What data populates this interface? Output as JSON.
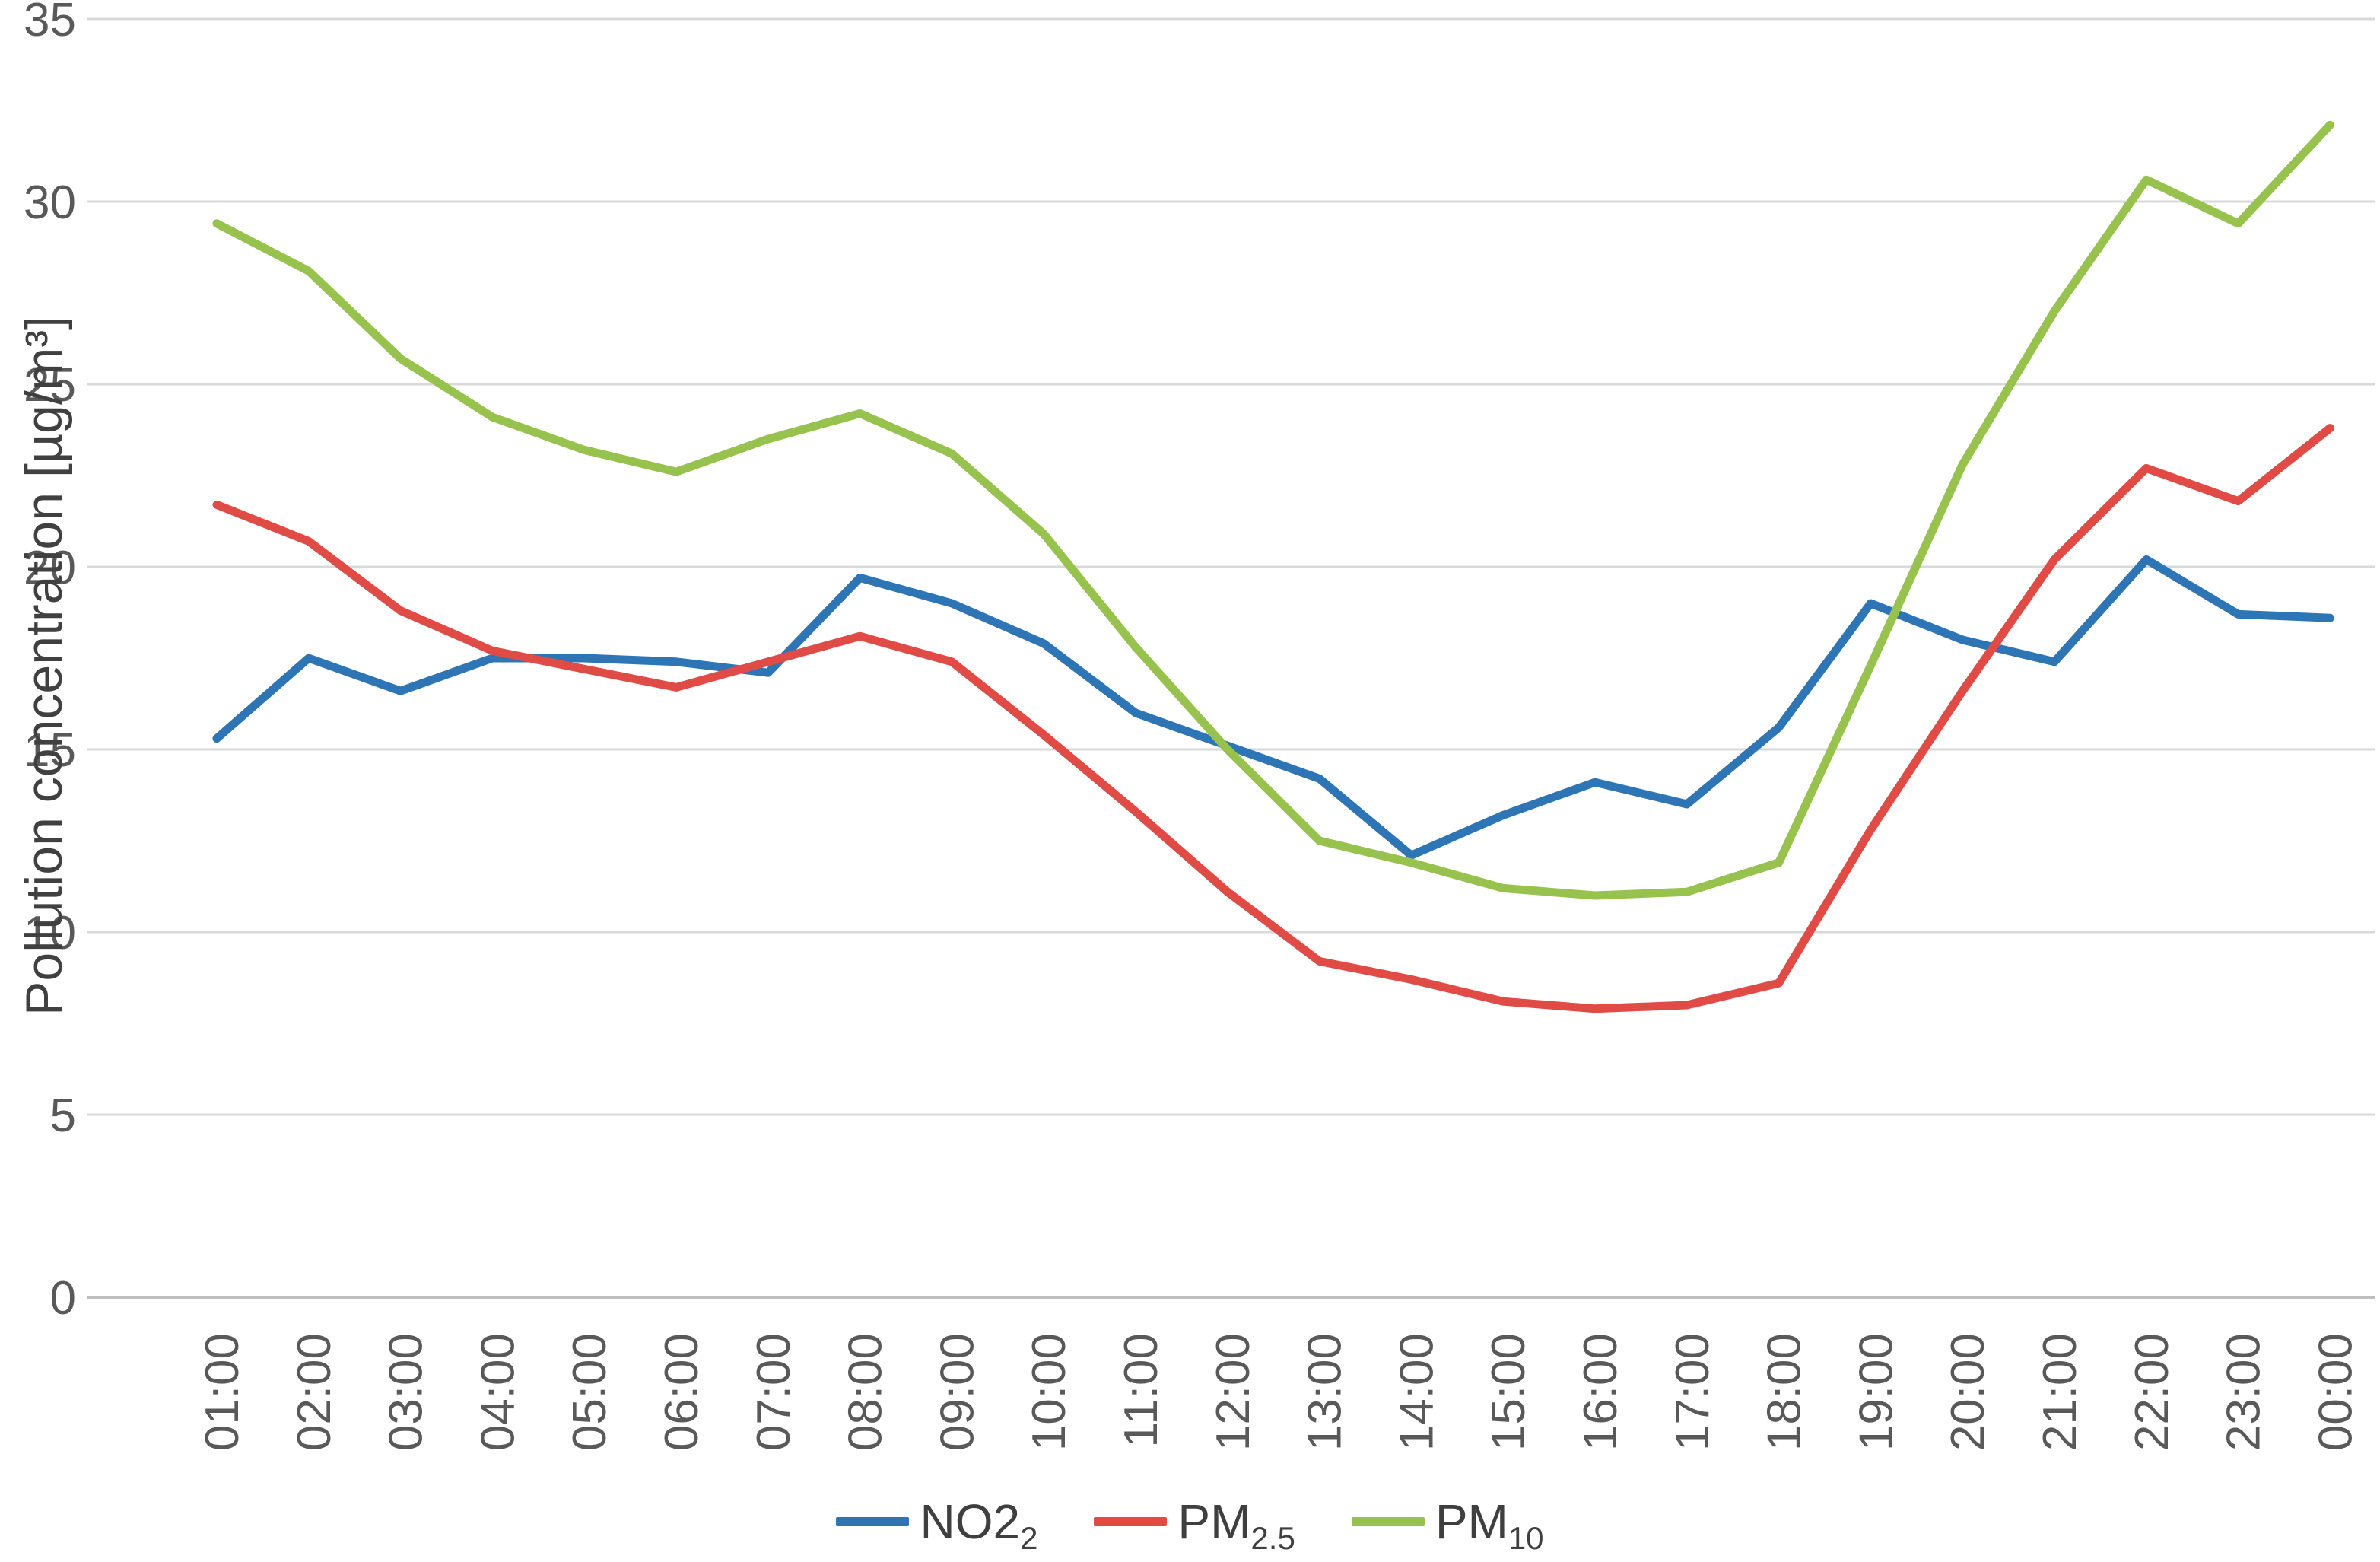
{
  "chart": {
    "y_axis_title": "Pollution concentration [µg/m³]",
    "colors": {
      "gridline": "#d9d9d9",
      "axis_line": "#bfbfbf",
      "tick_text": "#595959",
      "legend_text": "#3f3f3f",
      "background": "#ffffff"
    }
  },
  "chart_data": {
    "type": "line",
    "categories": [
      "01:00",
      "02:00",
      "03:00",
      "04:00",
      "05:00",
      "06:00",
      "07:00",
      "08:00",
      "09:00",
      "10:00",
      "11:00",
      "12:00",
      "13:00",
      "14:00",
      "15:00",
      "16:00",
      "17:00",
      "18:00",
      "19:00",
      "20:00",
      "21:00",
      "22:00",
      "23:00",
      "00:00"
    ],
    "series": [
      {
        "name": "NO2",
        "name_sub": "2",
        "color": "#2e75b6",
        "values": [
          15.3,
          17.5,
          16.6,
          17.5,
          17.5,
          17.4,
          17.1,
          19.7,
          19.0,
          17.9,
          16.0,
          15.1,
          14.2,
          12.1,
          13.2,
          14.1,
          13.5,
          15.6,
          19.0,
          18.0,
          17.4,
          20.2,
          18.7,
          18.6
        ]
      },
      {
        "name": "PM",
        "name_sub": "2.5",
        "color": "#e14b45",
        "values": [
          21.7,
          20.7,
          18.8,
          17.7,
          17.2,
          16.7,
          17.4,
          18.1,
          17.4,
          15.4,
          13.3,
          11.1,
          9.2,
          8.7,
          8.1,
          7.9,
          8.0,
          8.6,
          12.8,
          16.6,
          20.2,
          22.7,
          21.8,
          23.8
        ]
      },
      {
        "name": "PM",
        "name_sub": "10",
        "color": "#97c24e",
        "values": [
          29.4,
          28.1,
          25.7,
          24.1,
          23.2,
          22.6,
          23.5,
          24.2,
          23.1,
          20.9,
          17.8,
          15.0,
          12.5,
          11.9,
          11.2,
          11.0,
          11.1,
          11.9,
          17.3,
          22.8,
          27.0,
          30.6,
          29.4,
          32.1
        ]
      }
    ],
    "title": "",
    "xlabel": "",
    "ylabel": "Pollution concentration [µg/m³]",
    "ylim": [
      0,
      35
    ],
    "y_ticks": [
      0,
      5,
      10,
      15,
      20,
      25,
      30,
      35
    ],
    "grid": true,
    "legend_position": "bottom"
  }
}
